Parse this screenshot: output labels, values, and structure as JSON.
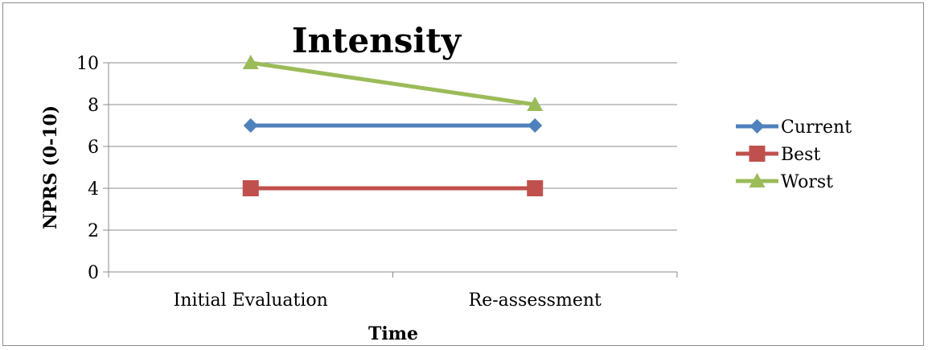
{
  "chart_data": {
    "type": "line",
    "title": "Intensity",
    "xlabel": "Time",
    "ylabel": "NPRS (0-10)",
    "categories": [
      "Initial Evaluation",
      "Re-assessment"
    ],
    "ylim": [
      0,
      10
    ],
    "yticks": [
      0,
      2,
      4,
      6,
      8,
      10
    ],
    "grid": true,
    "legend": "right",
    "series": [
      {
        "name": "Current",
        "values": [
          7,
          7
        ],
        "color": "#4f81bd",
        "marker": "diamond"
      },
      {
        "name": "Best",
        "values": [
          4,
          4
        ],
        "color": "#c0504d",
        "marker": "square"
      },
      {
        "name": "Worst",
        "values": [
          10,
          8
        ],
        "color": "#9bbb59",
        "marker": "triangle"
      }
    ]
  }
}
